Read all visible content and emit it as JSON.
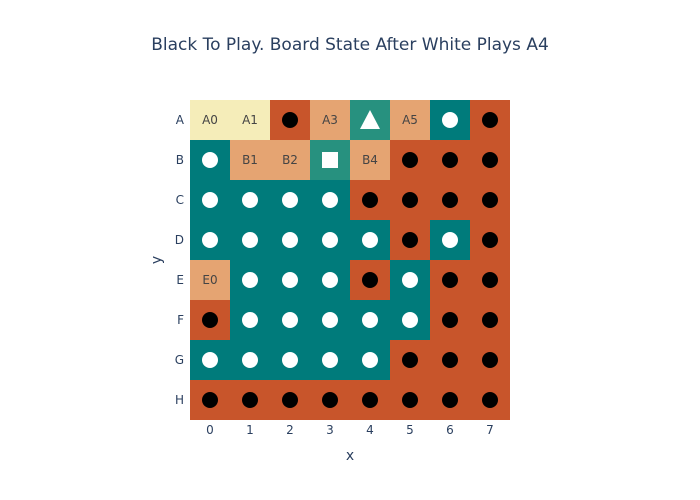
{
  "title": "Black To Play. Board State After White Plays A4",
  "axes": {
    "xlabel": "x",
    "ylabel": "y",
    "x_ticks": [
      "0",
      "1",
      "2",
      "3",
      "4",
      "5",
      "6",
      "7"
    ],
    "y_ticks": [
      "A",
      "B",
      "C",
      "D",
      "E",
      "F",
      "G",
      "H"
    ]
  },
  "colors": {
    "black_territory": "#c8552b",
    "white_territory": "#007b7b",
    "neutral_light": "#f5edb9",
    "neutral_peach": "#e5a472",
    "last_move_highlight": "#27917f",
    "black_stone": "#000000",
    "white_stone": "#ffffff"
  },
  "chart_data": {
    "type": "heatmap",
    "title": "Black To Play. Board State After White Plays A4",
    "xlabel": "x",
    "ylabel": "y",
    "x": [
      0,
      1,
      2,
      3,
      4,
      5,
      6,
      7
    ],
    "y": [
      "A",
      "B",
      "C",
      "D",
      "E",
      "F",
      "G",
      "H"
    ],
    "cell_key": {
      "K": "black territory",
      "W": "white territory",
      "L": "neutral (light)",
      "P": "neutral (peach)",
      "T": "highlighted"
    },
    "cells": [
      [
        "L",
        "L",
        "K",
        "P",
        "T",
        "P",
        "W",
        "K"
      ],
      [
        "W",
        "P",
        "P",
        "T",
        "P",
        "K",
        "K",
        "K"
      ],
      [
        "W",
        "W",
        "W",
        "W",
        "K",
        "K",
        "K",
        "K"
      ],
      [
        "W",
        "W",
        "W",
        "W",
        "W",
        "K",
        "W",
        "K"
      ],
      [
        "P",
        "W",
        "W",
        "W",
        "K",
        "W",
        "K",
        "K"
      ],
      [
        "K",
        "W",
        "W",
        "W",
        "W",
        "W",
        "K",
        "K"
      ],
      [
        "W",
        "W",
        "W",
        "W",
        "W",
        "K",
        "K",
        "K"
      ],
      [
        "K",
        "K",
        "K",
        "K",
        "K",
        "K",
        "K",
        "K"
      ]
    ],
    "stone_key": {
      "b": "black stone",
      "w": "white stone",
      "tri": "last move (white)",
      "sq": "marked point",
      "": "empty"
    },
    "stones": [
      [
        "",
        "",
        "b",
        "",
        "tri",
        "",
        "w",
        "b"
      ],
      [
        "w",
        "",
        "",
        "sq",
        "",
        "b",
        "b",
        "b"
      ],
      [
        "w",
        "w",
        "w",
        "w",
        "b",
        "b",
        "b",
        "b"
      ],
      [
        "w",
        "w",
        "w",
        "w",
        "w",
        "b",
        "w",
        "b"
      ],
      [
        "",
        "w",
        "w",
        "w",
        "b",
        "w",
        "b",
        "b"
      ],
      [
        "b",
        "w",
        "w",
        "w",
        "w",
        "w",
        "b",
        "b"
      ],
      [
        "w",
        "w",
        "w",
        "w",
        "w",
        "b",
        "b",
        "b"
      ],
      [
        "b",
        "b",
        "b",
        "b",
        "b",
        "b",
        "b",
        "b"
      ]
    ],
    "labels": [
      [
        "A0",
        "A1",
        "",
        "A3",
        "",
        "A5",
        "",
        ""
      ],
      [
        "",
        "B1",
        "B2",
        "",
        "B4",
        "",
        "",
        ""
      ],
      [
        "",
        "",
        "",
        "",
        "",
        "",
        "",
        ""
      ],
      [
        "",
        "",
        "",
        "",
        "",
        "",
        "",
        ""
      ],
      [
        "E0",
        "",
        "",
        "",
        "",
        "",
        "",
        ""
      ],
      [
        "",
        "",
        "",
        "",
        "",
        "",
        "",
        ""
      ],
      [
        "",
        "",
        "",
        "",
        "",
        "",
        "",
        ""
      ],
      [
        "",
        "",
        "",
        "",
        "",
        "",
        "",
        ""
      ]
    ]
  }
}
